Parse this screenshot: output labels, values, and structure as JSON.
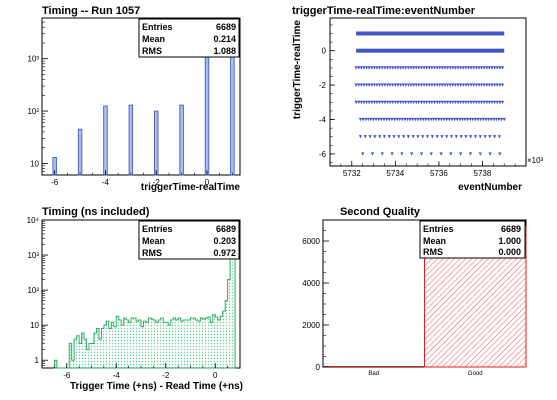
{
  "chart_data": [
    {
      "id": "timing",
      "type": "bar",
      "title": "Timing -- Run 1057",
      "xlabel": "triggerTime-realTime",
      "ylabel": "",
      "log_y": true,
      "xlim": [
        -6.5,
        1.3
      ],
      "ylim": [
        6,
        6000
      ],
      "x_ticks": [
        -6,
        -4,
        -2,
        0
      ],
      "y_ticks": [
        {
          "value": 10,
          "label": "10"
        },
        {
          "value": 100,
          "label": "10²"
        },
        {
          "value": 1000,
          "label": "10³"
        }
      ],
      "bar_color": "#3355bb",
      "fill_color": "#aabbee",
      "bars": [
        {
          "x": -6,
          "y": 13
        },
        {
          "x": -5,
          "y": 45
        },
        {
          "x": -4,
          "y": 125
        },
        {
          "x": -3,
          "y": 130
        },
        {
          "x": -2,
          "y": 100
        },
        {
          "x": -1,
          "y": 130
        },
        {
          "x": 0,
          "y": 3500
        },
        {
          "x": 1,
          "y": 2900
        }
      ],
      "stats": [
        {
          "label": "Entries",
          "value": "6689"
        },
        {
          "label": "Mean",
          "value": "0.214"
        },
        {
          "label": "RMS",
          "value": "1.088"
        }
      ]
    },
    {
      "id": "scatter",
      "type": "scatter",
      "title": "triggerTime-realTime:eventNumber",
      "xlabel": "eventNumber",
      "ylabel": "triggerTime-realTime",
      "xlim": [
        5731,
        5740
      ],
      "ylim": [
        -6.7,
        1.9
      ],
      "x_ticks": [
        5732,
        5734,
        5736,
        5738
      ],
      "y_ticks": [
        -6,
        -4,
        -2,
        0
      ],
      "x_exponent_label": "×10³",
      "marker_color": "#4455cc",
      "bands": [
        {
          "y": 1,
          "x_start": 5732.2,
          "x_end": 5739,
          "density": "solid"
        },
        {
          "y": 0,
          "x_start": 5732.2,
          "x_end": 5739,
          "density": "solid"
        },
        {
          "y": -1,
          "x_start": 5732.2,
          "x_end": 5739,
          "density": "dense"
        },
        {
          "y": -2,
          "x_start": 5732.2,
          "x_end": 5739,
          "density": "dense"
        },
        {
          "y": -3,
          "x_start": 5732.2,
          "x_end": 5739,
          "density": "dense"
        },
        {
          "y": -4,
          "x_start": 5732.4,
          "x_end": 5739,
          "density": "dense"
        },
        {
          "y": -5,
          "x_start": 5732.4,
          "x_end": 5739,
          "density": "medium"
        },
        {
          "y": -6,
          "x_start": 5732.5,
          "x_end": 5739,
          "density": "sparse"
        }
      ]
    },
    {
      "id": "timing_ns",
      "type": "area",
      "title": "Timing (ns included)",
      "xlabel": "Trigger Time (+ns) - Read Time (+ns)",
      "ylabel": "",
      "log_y": true,
      "xlim": [
        -7,
        1
      ],
      "ylim": [
        0.6,
        10000
      ],
      "x_ticks": [
        -6,
        -4,
        -2,
        0
      ],
      "y_ticks": [
        {
          "value": 1,
          "label": "1"
        },
        {
          "value": 10,
          "label": "10"
        },
        {
          "value": 100,
          "label": "10²"
        },
        {
          "value": 1000,
          "label": "10³"
        },
        {
          "value": 10000,
          "label": "10⁴"
        }
      ],
      "line_color": "#33aa66",
      "fill_color": "#99ddbb",
      "bin_width": 0.1,
      "bin_start": -6.5,
      "counts": [
        1,
        0,
        0,
        0,
        0,
        0,
        3,
        1,
        4,
        5,
        3,
        6,
        4,
        2,
        3,
        3,
        6,
        8,
        4,
        8,
        10,
        13,
        8,
        12,
        9,
        18,
        14,
        10,
        16,
        14,
        12,
        16,
        16,
        13,
        14,
        9,
        13,
        12,
        16,
        15,
        14,
        12,
        14,
        16,
        12,
        12,
        10,
        14,
        16,
        14,
        16,
        13,
        14,
        14,
        14,
        16,
        16,
        14,
        13,
        16,
        15,
        16,
        17,
        12,
        20,
        17,
        14,
        18,
        25,
        50,
        200,
        1500,
        3000
      ],
      "stats": [
        {
          "label": "Entries",
          "value": "6689"
        },
        {
          "label": "Mean",
          "value": "0.203"
        },
        {
          "label": "RMS",
          "value": "0.972"
        }
      ]
    },
    {
      "id": "quality",
      "type": "bar",
      "title": "Second Quality",
      "xlabel": "",
      "ylabel": "",
      "categories": [
        "Bad",
        "Good"
      ],
      "values": [
        0,
        6689
      ],
      "ylim": [
        0,
        7000
      ],
      "y_ticks": [
        0,
        2000,
        4000,
        6000
      ],
      "bar_color": "#dd2222",
      "stats": [
        {
          "label": "Entries",
          "value": "6689"
        },
        {
          "label": "Mean",
          "value": "1.000"
        },
        {
          "label": "RMS",
          "value": "0.000"
        }
      ]
    }
  ]
}
